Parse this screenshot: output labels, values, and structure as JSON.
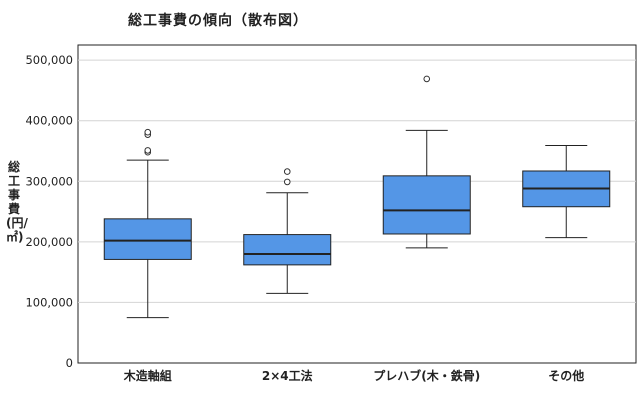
{
  "chart_data": {
    "type": "box",
    "title": "総工事費の傾向（散布図）",
    "ylabel": "総工事費(円/㎡)",
    "xlabel": "",
    "ylim": [
      0,
      525000
    ],
    "yticks": [
      0,
      100000,
      200000,
      300000,
      400000,
      500000
    ],
    "ytick_labels": [
      "0",
      "100,000",
      "200,000",
      "300,000",
      "400,000",
      "500,000"
    ],
    "grid": true,
    "colors": {
      "box_fill": "#5496e6",
      "box_stroke": "#222222",
      "grid": "#d4d4d4"
    },
    "categories": [
      "木造軸組",
      "2×4工法",
      "プレハブ(木・鉄骨)",
      "その他"
    ],
    "boxes": [
      {
        "whisker_low": 75000,
        "q1": 171000,
        "median": 202000,
        "q3": 238000,
        "whisker_high": 335000,
        "outliers": [
          348000,
          351000,
          377000,
          381000
        ]
      },
      {
        "whisker_low": 115000,
        "q1": 162000,
        "median": 180000,
        "q3": 212000,
        "whisker_high": 281000,
        "outliers": [
          299000,
          316000
        ]
      },
      {
        "whisker_low": 190000,
        "q1": 213000,
        "median": 252000,
        "q3": 309000,
        "whisker_high": 384000,
        "outliers": [
          469000
        ]
      },
      {
        "whisker_low": 207000,
        "q1": 258000,
        "median": 288000,
        "q3": 317000,
        "whisker_high": 359000,
        "outliers": []
      }
    ]
  }
}
